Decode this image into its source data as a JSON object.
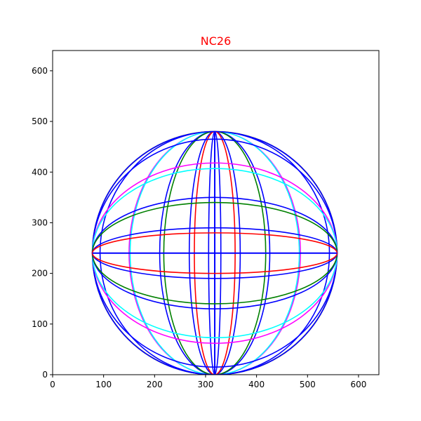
{
  "chart_data": {
    "type": "line",
    "title": "NC26",
    "title_color": "#ff0000",
    "xlabel": "",
    "ylabel": "",
    "xlim": [
      0,
      640
    ],
    "ylim": [
      0,
      640
    ],
    "xticks": [
      0,
      100,
      200,
      300,
      400,
      500,
      600
    ],
    "yticks": [
      0,
      100,
      200,
      300,
      400,
      500,
      600
    ],
    "grid": false,
    "legend": "none",
    "center": [
      318,
      240
    ],
    "series": [
      {
        "kind": "circle",
        "r": 240,
        "color": "#ffff00"
      },
      {
        "kind": "meridian",
        "a": 240,
        "color": "#0000ff"
      },
      {
        "kind": "meridian",
        "a": 225,
        "color": "#0000ff"
      },
      {
        "kind": "meridian",
        "a": 168,
        "color": "#ff00ff"
      },
      {
        "kind": "meridian",
        "a": 166,
        "color": "#00ffff"
      },
      {
        "kind": "meridian",
        "a": 108,
        "color": "#0000ff"
      },
      {
        "kind": "meridian",
        "a": 100,
        "color": "#008000"
      },
      {
        "kind": "meridian",
        "a": 50,
        "color": "#0000ff"
      },
      {
        "kind": "meridian",
        "a": 40,
        "color": "#ff0000"
      },
      {
        "kind": "meridian",
        "a": 12,
        "color": "#0000ff"
      },
      {
        "kind": "meridian",
        "a": 0,
        "color": "#0000ff"
      },
      {
        "kind": "parallel",
        "b": 240,
        "color": "#0000ff"
      },
      {
        "kind": "parallel",
        "b": 225,
        "color": "#0000ff"
      },
      {
        "kind": "parallel",
        "b": 178,
        "color": "#ff00ff"
      },
      {
        "kind": "parallel",
        "b": 167,
        "color": "#00ffff"
      },
      {
        "kind": "parallel",
        "b": 110,
        "color": "#0000ff"
      },
      {
        "kind": "parallel",
        "b": 100,
        "color": "#008000"
      },
      {
        "kind": "parallel",
        "b": 50,
        "color": "#0000ff"
      },
      {
        "kind": "parallel",
        "b": 40,
        "color": "#ff0000"
      },
      {
        "kind": "parallel",
        "b": 0,
        "color": "#0000ff"
      }
    ]
  }
}
